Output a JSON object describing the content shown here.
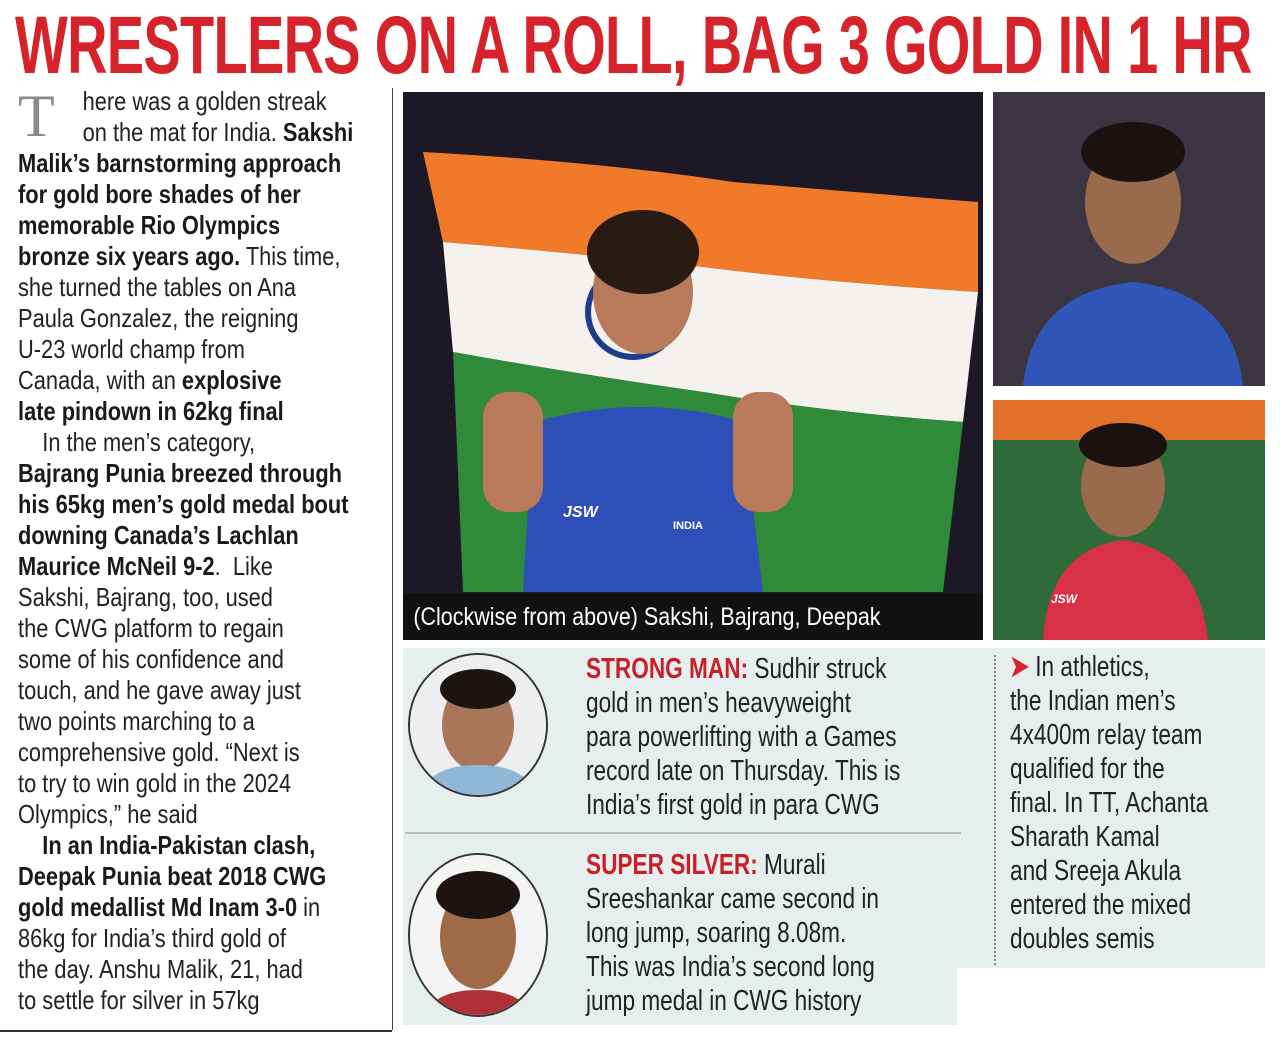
{
  "headline": "WRESTLERS ON A ROLL, BAG 3 GOLD IN 1 HR",
  "colors": {
    "headline": "#d6232b",
    "label_red": "#c8202a",
    "box_bg": "#e6efee"
  },
  "article": {
    "dropcap": "T",
    "lines": [
      [
        {
          "t": "    here was a golden streak"
        }
      ],
      [
        {
          "t": "    on the mat for India. "
        },
        {
          "t": "Sakshi",
          "b": true
        }
      ],
      [
        {
          "t": "Malik’s barnstorming approach",
          "b": true
        }
      ],
      [
        {
          "t": "for gold bore shades of her",
          "b": true
        }
      ],
      [
        {
          "t": "memorable Rio Olympics",
          "b": true
        }
      ],
      [
        {
          "t": "bronze six years ago.",
          "b": true
        },
        {
          "t": " This time,"
        }
      ],
      [
        {
          "t": "she turned the tables on Ana"
        }
      ],
      [
        {
          "t": "Paula Gonzalez, the reigning"
        }
      ],
      [
        {
          "t": "U-23 world champ from"
        }
      ],
      [
        {
          "t": "Canada, with an "
        },
        {
          "t": "explosive",
          "b": true
        }
      ],
      [
        {
          "t": "late pindown in 62kg final",
          "b": true
        }
      ],
      [
        {
          "t": "    In the men’s category,"
        }
      ],
      [
        {
          "t": "Bajrang Punia breezed through",
          "b": true
        }
      ],
      [
        {
          "t": "his 65kg men’s gold medal bout",
          "b": true
        }
      ],
      [
        {
          "t": "downing Canada’s Lachlan",
          "b": true
        }
      ],
      [
        {
          "t": "Maurice McNeil 9-2",
          "b": true
        },
        {
          "t": ".  Like"
        }
      ],
      [
        {
          "t": "Sakshi, Bajrang, too, used"
        }
      ],
      [
        {
          "t": "the CWG platform to regain"
        }
      ],
      [
        {
          "t": "some of his confidence and"
        }
      ],
      [
        {
          "t": "touch, and he gave away just"
        }
      ],
      [
        {
          "t": "two points marching to a"
        }
      ],
      [
        {
          "t": "comprehensive gold. “Next is"
        }
      ],
      [
        {
          "t": "to try to win gold in the 2024"
        }
      ],
      [
        {
          "t": "Olympics,” he said"
        }
      ],
      [
        {
          "t": "    In an India-Pakistan clash,",
          "b": true
        }
      ],
      [
        {
          "t": "Deepak Punia beat 2018 CWG",
          "b": true
        }
      ],
      [
        {
          "t": "gold medallist Md Inam 3-0",
          "b": true
        },
        {
          "t": " in"
        }
      ],
      [
        {
          "t": "86kg for India’s third gold of"
        }
      ],
      [
        {
          "t": "the day. Anshu Malik, 21, had"
        }
      ],
      [
        {
          "t": "to settle for silver in 57kg"
        }
      ]
    ]
  },
  "photos": {
    "main_caption": "(Clockwise from above) Sakshi, Bajrang, Deepak",
    "jersey_text": "INDIA",
    "sponsor_text": "JSW"
  },
  "sidebar": {
    "strong_man": {
      "label": "STRONG MAN:",
      "lines": [
        " Sudhir struck",
        "gold in men’s heavyweight",
        "para powerlifting with a Games",
        "record late on Thursday. This is",
        "India’s first gold in para CWG"
      ]
    },
    "super_silver": {
      "label": "SUPER SILVER:",
      "lines": [
        " Murali",
        "Sreeshankar came second in",
        "long jump, soaring 8.08m.",
        "This was India’s second long",
        "jump medal in CWG history"
      ]
    },
    "athletics": {
      "arrow": "➤",
      "lines": [
        " In athletics,",
        "the Indian men’s",
        "4x400m relay team",
        "qualified for the",
        "final. In TT, Achanta",
        "Sharath Kamal",
        "and Sreeja Akula",
        "entered the mixed",
        "doubles semis"
      ]
    }
  }
}
